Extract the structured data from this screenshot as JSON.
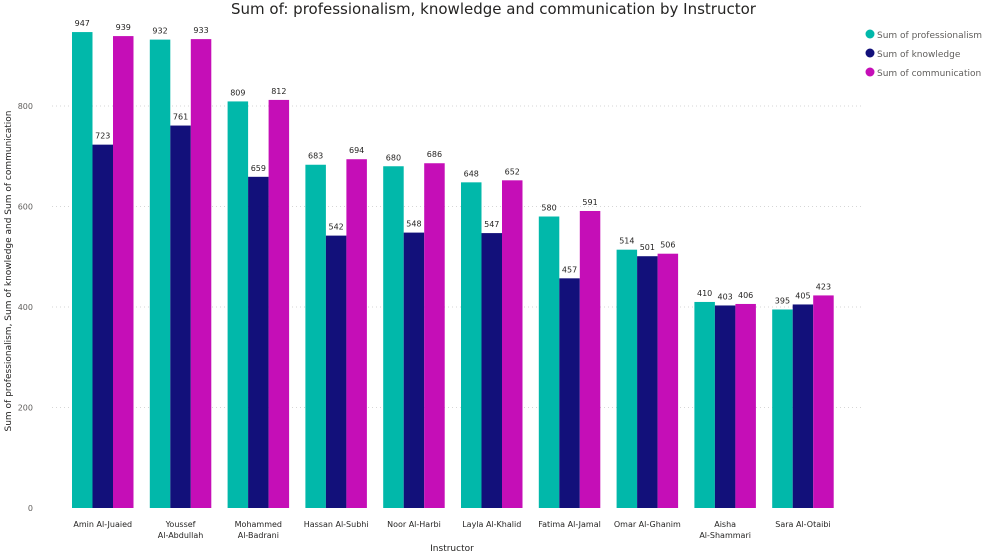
{
  "chart_data": {
    "type": "bar",
    "title": "Sum of: professionalism, knowledge and communication by Instructor",
    "xlabel": "Instructor",
    "ylabel": "Sum of professionalism, Sum of knowledge and Sum of communication",
    "ylim": [
      0,
      975
    ],
    "yticks": [
      0,
      200,
      400,
      600,
      800
    ],
    "grid": true,
    "legend_position": "top-right",
    "categories": [
      [
        "Amin Al-Juaied"
      ],
      [
        "Youssef",
        "Al-Abdullah"
      ],
      [
        "Mohammed",
        "Al-Badrani"
      ],
      [
        "Hassan Al-Subhi"
      ],
      [
        "Noor Al-Harbi"
      ],
      [
        "Layla Al-Khalid"
      ],
      [
        "Fatima Al-Jamal"
      ],
      [
        "Omar Al-Ghanim"
      ],
      [
        "Aisha",
        "Al-Shammari"
      ],
      [
        "Sara Al-Otaibi"
      ]
    ],
    "series": [
      {
        "name": "Sum of professionalism",
        "color": "#01B8AA",
        "values": [
          947,
          932,
          809,
          683,
          680,
          648,
          580,
          514,
          410,
          395
        ]
      },
      {
        "name": "Sum of knowledge",
        "color": "#12107A",
        "values": [
          723,
          761,
          659,
          542,
          548,
          547,
          457,
          501,
          403,
          405
        ]
      },
      {
        "name": "Sum of communication",
        "color": "#C50EB7",
        "values": [
          939,
          933,
          812,
          694,
          686,
          652,
          591,
          506,
          406,
          423
        ]
      }
    ]
  }
}
